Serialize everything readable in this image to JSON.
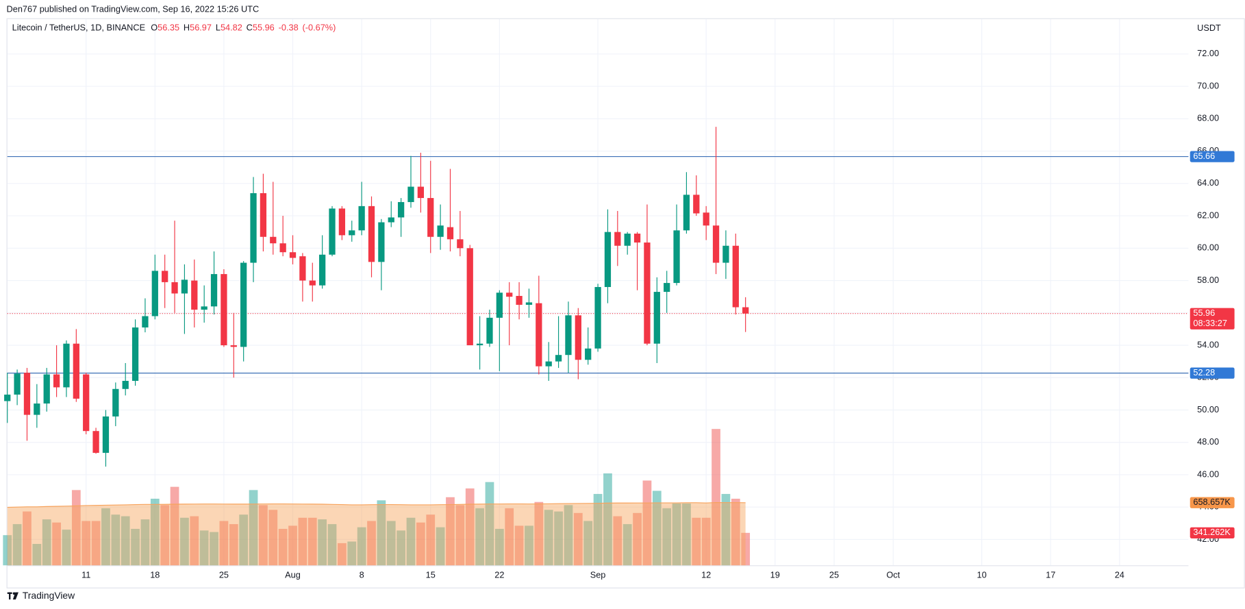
{
  "header": {
    "published": "Den767 published on TradingView.com, Sep 16, 2022 15:26 UTC",
    "brand": "TradingView"
  },
  "chart_data": {
    "type": "candlestick",
    "symbol": "Litecoin / TetherUS, 1D, BINANCE",
    "ohlc_letters": [
      "O",
      "H",
      "L",
      "C"
    ],
    "change": -0.38,
    "change_pct": {
      "value": -0.67,
      "label": "(-0.67%)"
    },
    "y_label": "USDT",
    "countdown": "08:33:27",
    "up_color": "#089981",
    "down_color": "#f23645",
    "volume_up_color": "#26a69a",
    "volume_down_color": "#ef5350",
    "volume_ma_color": "#f7a35c",
    "grid": true,
    "x": [
      "2022-07-03",
      "2022-07-04",
      "2022-07-05",
      "2022-07-06",
      "2022-07-07",
      "2022-07-08",
      "2022-07-09",
      "2022-07-10",
      "2022-07-11",
      "2022-07-12",
      "2022-07-13",
      "2022-07-14",
      "2022-07-15",
      "2022-07-16",
      "2022-07-17",
      "2022-07-18",
      "2022-07-19",
      "2022-07-20",
      "2022-07-21",
      "2022-07-22",
      "2022-07-23",
      "2022-07-24",
      "2022-07-25",
      "2022-07-26",
      "2022-07-27",
      "2022-07-28",
      "2022-07-29",
      "2022-07-30",
      "2022-07-31",
      "2022-08-01",
      "2022-08-02",
      "2022-08-03",
      "2022-08-04",
      "2022-08-05",
      "2022-08-06",
      "2022-08-07",
      "2022-08-08",
      "2022-08-09",
      "2022-08-10",
      "2022-08-11",
      "2022-08-12",
      "2022-08-13",
      "2022-08-14",
      "2022-08-15",
      "2022-08-16",
      "2022-08-17",
      "2022-08-18",
      "2022-08-19",
      "2022-08-20",
      "2022-08-21",
      "2022-08-22",
      "2022-08-23",
      "2022-08-24",
      "2022-08-25",
      "2022-08-26",
      "2022-08-27",
      "2022-08-28",
      "2022-08-29",
      "2022-08-30",
      "2022-08-31",
      "2022-09-01",
      "2022-09-02",
      "2022-09-03",
      "2022-09-04",
      "2022-09-05",
      "2022-09-06",
      "2022-09-07",
      "2022-09-08",
      "2022-09-09",
      "2022-09-10",
      "2022-09-11",
      "2022-09-12",
      "2022-09-13",
      "2022-09-14",
      "2022-09-15",
      "2022-09-16"
    ],
    "open": [
      50.55,
      50.95,
      52.3,
      49.7,
      50.4,
      52.2,
      51.4,
      54.1,
      52.2,
      48.7,
      47.35,
      49.6,
      51.3,
      51.8,
      55.1,
      55.8,
      58.6,
      57.9,
      57.2,
      58.0,
      56.2,
      56.4,
      58.4,
      54.0,
      53.9,
      59.1,
      63.4,
      60.7,
      60.3,
      59.75,
      59.5,
      58.0,
      57.7,
      59.6,
      62.45,
      60.8,
      61.1,
      62.6,
      59.15,
      61.6,
      61.9,
      62.85,
      63.8,
      63.1,
      60.7,
      61.3,
      60.55,
      60.0,
      54.0,
      54.1,
      55.7,
      57.25,
      57.05,
      56.5,
      56.6,
      52.7,
      53.0,
      53.4,
      55.85,
      53.1,
      53.8,
      57.6,
      61.0,
      60.15,
      60.9,
      60.35,
      54.1,
      57.3,
      57.85,
      61.1,
      63.3,
      62.2,
      61.4,
      59.1,
      60.15,
      56.35
    ],
    "high": [
      52.3,
      52.5,
      52.6,
      51.6,
      52.6,
      54.0,
      54.3,
      55.0,
      52.3,
      48.9,
      50.0,
      51.7,
      52.9,
      55.6,
      56.9,
      59.6,
      59.6,
      61.7,
      59.0,
      59.3,
      57.7,
      59.8,
      58.7,
      56.0,
      59.2,
      64.4,
      64.6,
      64.1,
      62.0,
      60.8,
      59.7,
      59.1,
      60.8,
      62.6,
      62.6,
      61.7,
      64.1,
      63.2,
      61.8,
      62.9,
      63.1,
      65.7,
      65.9,
      65.4,
      62.7,
      64.9,
      62.3,
      60.2,
      55.8,
      56.2,
      57.4,
      57.9,
      57.9,
      57.5,
      58.3,
      54.2,
      55.8,
      56.7,
      56.3,
      55.1,
      57.8,
      62.4,
      62.3,
      61.0,
      61.0,
      62.7,
      58.2,
      58.6,
      62.7,
      64.7,
      64.5,
      62.6,
      67.5,
      61.1,
      60.9,
      56.97
    ],
    "low": [
      49.2,
      50.3,
      48.1,
      48.9,
      49.9,
      50.8,
      50.8,
      50.5,
      48.5,
      47.3,
      46.5,
      49.0,
      50.9,
      51.5,
      54.8,
      55.6,
      56.3,
      56.0,
      54.7,
      55.1,
      55.4,
      55.9,
      53.9,
      52.0,
      53.0,
      57.9,
      59.8,
      59.6,
      59.5,
      59.0,
      56.7,
      56.7,
      57.5,
      59.5,
      60.5,
      60.4,
      60.8,
      58.2,
      57.4,
      61.3,
      60.7,
      62.5,
      62.2,
      59.7,
      59.9,
      59.8,
      59.5,
      54.0,
      52.5,
      53.9,
      52.4,
      54.0,
      55.6,
      55.7,
      52.2,
      51.8,
      52.6,
      52.3,
      51.9,
      52.8,
      53.6,
      56.6,
      58.9,
      59.6,
      57.4,
      54.0,
      52.9,
      56.0,
      57.7,
      60.9,
      62.0,
      60.5,
      58.4,
      58.1,
      55.9,
      54.82
    ],
    "close": [
      50.95,
      52.25,
      49.7,
      50.4,
      52.2,
      51.4,
      54.1,
      50.7,
      48.7,
      47.35,
      49.6,
      51.3,
      51.8,
      55.1,
      55.8,
      58.6,
      57.9,
      57.2,
      58.05,
      56.2,
      56.4,
      58.4,
      54.0,
      53.9,
      59.1,
      63.4,
      60.7,
      60.3,
      59.75,
      59.4,
      58.0,
      57.7,
      59.6,
      62.45,
      60.8,
      61.1,
      62.6,
      59.15,
      61.6,
      61.9,
      62.85,
      63.8,
      63.1,
      60.7,
      61.4,
      60.55,
      60.0,
      54.0,
      54.1,
      55.7,
      57.25,
      57.0,
      56.5,
      56.65,
      52.7,
      53.0,
      53.4,
      55.85,
      53.1,
      53.8,
      57.6,
      61.0,
      60.15,
      60.9,
      60.35,
      54.1,
      57.3,
      57.85,
      61.1,
      63.3,
      62.15,
      61.4,
      59.1,
      60.15,
      56.35,
      55.96
    ],
    "volume": [
      317,
      433,
      566,
      225,
      483,
      450,
      375,
      791,
      466,
      466,
      600,
      533,
      516,
      383,
      483,
      700,
      633,
      825,
      500,
      516,
      366,
      350,
      466,
      433,
      533,
      791,
      633,
      583,
      383,
      416,
      500,
      500,
      483,
      433,
      233,
      250,
      400,
      466,
      683,
      466,
      366,
      500,
      450,
      533,
      400,
      716,
      633,
      808,
      600,
      875,
      383,
      600,
      416,
      416,
      666,
      583,
      566,
      633,
      550,
      466,
      750,
      966,
      516,
      433,
      550,
      891,
      783,
      600,
      650,
      650,
      500,
      500,
      1433,
      750,
      700,
      341.262
    ],
    "volume_last_label": "341.262K",
    "volume_ma": [
      610,
      612,
      615,
      615,
      618,
      620,
      622,
      625,
      628,
      630,
      632,
      634,
      636,
      638,
      640,
      640,
      641,
      642,
      643,
      644,
      645,
      645,
      644,
      643,
      643,
      644,
      645,
      646,
      646,
      645,
      644,
      643,
      642,
      640,
      638,
      636,
      636,
      637,
      638,
      638,
      637,
      636,
      636,
      636,
      637,
      638,
      640,
      642,
      643,
      645,
      645,
      646,
      646,
      645,
      646,
      647,
      648,
      649,
      650,
      651,
      652,
      654,
      655,
      655,
      656,
      656,
      657,
      657,
      657,
      658,
      658,
      656,
      660,
      659,
      659,
      658.657
    ],
    "volume_ma_last_label": "658.657K",
    "hlines": [
      {
        "value": 65.66,
        "color": "#3b6fb6"
      },
      {
        "value": 52.28,
        "color": "#3b6fb6"
      }
    ],
    "xlim": [
      "2022-07-03",
      "2022-10-31"
    ],
    "ylim": [
      40.4,
      74.16
    ],
    "y2lim": [
      0,
      5740
    ],
    "yticks": [
      {
        "value": 72,
        "label": "72.00"
      },
      {
        "value": 70,
        "label": "70.00"
      },
      {
        "value": 68,
        "label": "68.00"
      },
      {
        "value": 66,
        "label": "66.00"
      },
      {
        "value": 64,
        "label": "64.00"
      },
      {
        "value": 62,
        "label": "62.00"
      },
      {
        "value": 60,
        "label": "60.00"
      },
      {
        "value": 58,
        "label": "58.00"
      },
      {
        "value": 56,
        "label": "56.00"
      },
      {
        "value": 54,
        "label": "54.00"
      },
      {
        "value": 52,
        "label": "52.00"
      },
      {
        "value": 50,
        "label": "50.00"
      },
      {
        "value": 48,
        "label": "48.00"
      },
      {
        "value": 46,
        "label": "46.00"
      },
      {
        "value": 44,
        "label": "44.00"
      },
      {
        "value": 42,
        "label": "42.00"
      }
    ],
    "xticks": [
      {
        "value": "2022-07-11",
        "label": "11"
      },
      {
        "value": "2022-07-18",
        "label": "18"
      },
      {
        "value": "2022-07-25",
        "label": "25"
      },
      {
        "value": "2022-08-01",
        "label": "Aug"
      },
      {
        "value": "2022-08-08",
        "label": "8"
      },
      {
        "value": "2022-08-15",
        "label": "15"
      },
      {
        "value": "2022-08-22",
        "label": "22"
      },
      {
        "value": "2022-09-01",
        "label": "Sep"
      },
      {
        "value": "2022-09-12",
        "label": "12"
      },
      {
        "value": "2022-09-19",
        "label": "19"
      },
      {
        "value": "2022-09-25",
        "label": "25"
      },
      {
        "value": "2022-10-01",
        "label": "Oct"
      },
      {
        "value": "2022-10-10",
        "label": "10"
      },
      {
        "value": "2022-10-17",
        "label": "17"
      },
      {
        "value": "2022-10-24",
        "label": "24"
      }
    ]
  }
}
